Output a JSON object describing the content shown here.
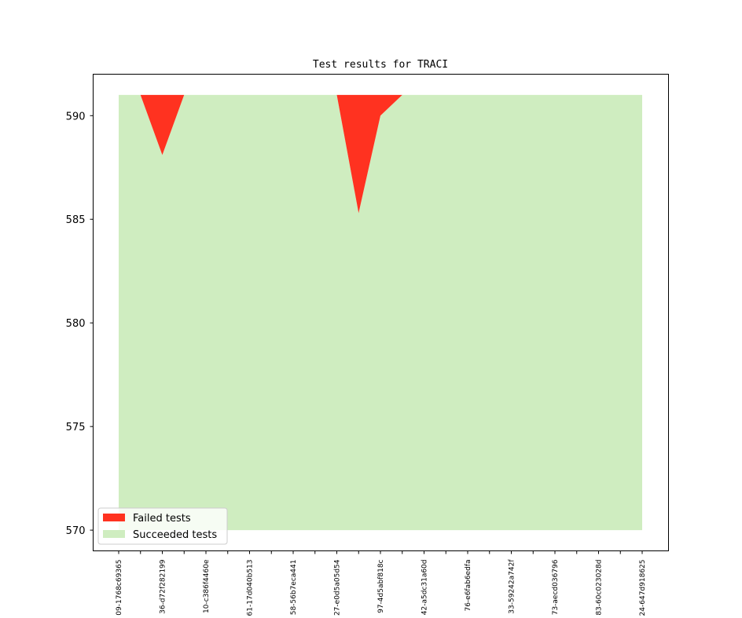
{
  "chart_data": {
    "type": "area",
    "title": "Test results for TRACI",
    "xlabel": "",
    "ylabel": "",
    "ylim": [
      569.0,
      592.0
    ],
    "yticks": [
      570,
      575,
      580,
      585,
      590
    ],
    "categories": [
      "09-1768c69365",
      "",
      "36-d72f282199",
      "",
      "10-c386f4460e",
      "",
      "61-17d040b513",
      "",
      "58-56b7eca441",
      "",
      "27-e0d5a05d54",
      "",
      "97-4d5abf818c",
      "",
      "42-a5dc31a60d",
      "",
      "76-e6fab6edfa",
      "",
      "33-59242a742f",
      "",
      "73-aecd036796",
      "",
      "83-60c023028d",
      "",
      "24-647d918625"
    ],
    "baseline": 570,
    "series": [
      {
        "name": "Succeeded tests",
        "color": "#cfedc0",
        "values": [
          591,
          591,
          588.1,
          591,
          591,
          591,
          591,
          591,
          591,
          591,
          591,
          585.3,
          590.0,
          591,
          591,
          591,
          591,
          591,
          591,
          591,
          591,
          591,
          591,
          591,
          591
        ]
      },
      {
        "name": "Failed tests",
        "color": "#ff3220",
        "values": [
          0,
          0,
          2.9,
          0,
          0,
          0,
          0,
          0,
          0,
          0,
          0,
          5.7,
          1.0,
          0,
          0,
          0,
          0,
          0,
          0,
          0,
          0,
          0,
          0,
          0,
          0
        ]
      }
    ],
    "legend_entries": [
      "Failed tests",
      "Succeeded tests"
    ],
    "legend_position": "lower-left",
    "grid": false
  }
}
